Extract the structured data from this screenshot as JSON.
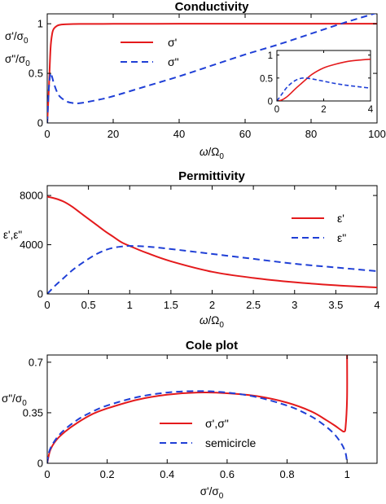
{
  "chart_data": [
    {
      "id": "conductivity",
      "type": "line",
      "title": "Conductivity",
      "xlabel": "ω/Ω0",
      "ylabel_lines": [
        "σ'/σ0",
        "σ\"/σ0"
      ],
      "xlim": [
        0,
        100
      ],
      "ylim": [
        0,
        1.1
      ],
      "xticks": [
        0,
        20,
        40,
        60,
        80,
        100
      ],
      "yticks": [
        0,
        0.5,
        1
      ],
      "legend": "top-center",
      "series": [
        {
          "name": "σ'",
          "color": "#e41a1c",
          "style": "solid",
          "x": [
            0,
            0.5,
            1,
            1.5,
            2,
            3,
            4,
            6,
            10,
            20,
            40,
            60,
            80,
            100
          ],
          "y": [
            0,
            0.35,
            0.75,
            0.9,
            0.95,
            0.98,
            0.99,
            0.995,
            0.998,
            0.999,
            1.0,
            1.0,
            1.0,
            1.0
          ]
        },
        {
          "name": "σ\"",
          "color": "#1f3fd6",
          "style": "dashed",
          "x": [
            0,
            0.5,
            1,
            1.5,
            2,
            3,
            4,
            6,
            8,
            10,
            15,
            20,
            30,
            40,
            50,
            60,
            70,
            80,
            90,
            100
          ],
          "y": [
            0,
            0.35,
            0.5,
            0.46,
            0.4,
            0.31,
            0.26,
            0.215,
            0.2,
            0.2,
            0.23,
            0.27,
            0.37,
            0.47,
            0.58,
            0.69,
            0.79,
            0.9,
            1.01,
            1.11
          ]
        }
      ]
    },
    {
      "id": "conductivity-inset",
      "type": "line",
      "title": "",
      "xlim": [
        0,
        4
      ],
      "ylim": [
        0,
        1.1
      ],
      "xticks": [
        0,
        2,
        4
      ],
      "yticks": [
        0,
        0.5,
        1
      ],
      "series": [
        {
          "name": "σ'",
          "color": "#e41a1c",
          "style": "solid",
          "x": [
            0,
            0.2,
            0.4,
            0.6,
            0.8,
            1,
            1.2,
            1.5,
            2,
            2.5,
            3,
            3.5,
            4
          ],
          "y": [
            0,
            0.02,
            0.08,
            0.17,
            0.27,
            0.36,
            0.45,
            0.58,
            0.72,
            0.8,
            0.86,
            0.89,
            0.91
          ]
        },
        {
          "name": "σ\"",
          "color": "#1f3fd6",
          "style": "dashed",
          "x": [
            0,
            0.2,
            0.4,
            0.6,
            0.8,
            1,
            1.2,
            1.5,
            2,
            2.5,
            3,
            3.5,
            4
          ],
          "y": [
            0,
            0.14,
            0.28,
            0.38,
            0.45,
            0.49,
            0.5,
            0.48,
            0.43,
            0.38,
            0.34,
            0.31,
            0.28
          ]
        }
      ]
    },
    {
      "id": "permittivity",
      "type": "line",
      "title": "Permittivity",
      "xlabel": "ω/Ω0",
      "ylabel": "ε',ε\"",
      "xlim": [
        0,
        4
      ],
      "ylim": [
        0,
        8800
      ],
      "xticks": [
        0,
        0.5,
        1,
        1.5,
        2,
        2.5,
        3,
        3.5,
        4
      ],
      "yticks": [
        0,
        4000,
        8000
      ],
      "legend": "top-right",
      "series": [
        {
          "name": "ε'",
          "color": "#e41a1c",
          "style": "solid",
          "x": [
            0,
            0.1,
            0.2,
            0.3,
            0.4,
            0.5,
            0.6,
            0.7,
            0.8,
            0.9,
            1.0,
            1.2,
            1.5,
            2.0,
            2.5,
            3.0,
            3.5,
            4.0
          ],
          "y": [
            7900,
            7750,
            7500,
            7100,
            6600,
            6100,
            5600,
            5100,
            4650,
            4200,
            3900,
            3350,
            2650,
            1800,
            1300,
            950,
            700,
            520
          ]
        },
        {
          "name": "ε\"",
          "color": "#1f3fd6",
          "style": "dashed",
          "x": [
            0,
            0.1,
            0.2,
            0.3,
            0.4,
            0.5,
            0.6,
            0.7,
            0.8,
            0.9,
            1.0,
            1.2,
            1.5,
            2.0,
            2.5,
            3.0,
            3.5,
            4.0
          ],
          "y": [
            0,
            700,
            1300,
            1900,
            2400,
            2850,
            3250,
            3550,
            3750,
            3850,
            3900,
            3850,
            3650,
            3250,
            2850,
            2450,
            2150,
            1850
          ]
        }
      ]
    },
    {
      "id": "cole-plot",
      "type": "line",
      "title": "Cole plot",
      "xlabel": "σ'/σ0",
      "ylabel": "σ\"/σ0",
      "xlim": [
        0,
        1.1
      ],
      "ylim": [
        0,
        0.75
      ],
      "xticks": [
        0,
        0.2,
        0.4,
        0.6,
        0.8,
        1
      ],
      "yticks": [
        0,
        0.35,
        0.7
      ],
      "legend": "bottom-center",
      "series": [
        {
          "name": "σ',σ\"",
          "color": "#e41a1c",
          "style": "solid",
          "x": [
            0,
            0.01,
            0.03,
            0.06,
            0.1,
            0.15,
            0.2,
            0.3,
            0.4,
            0.5,
            0.6,
            0.7,
            0.8,
            0.88,
            0.93,
            0.96,
            0.98,
            0.99,
            0.995,
            1.0,
            1.0
          ],
          "y": [
            0,
            0.09,
            0.16,
            0.22,
            0.28,
            0.34,
            0.38,
            0.44,
            0.475,
            0.49,
            0.485,
            0.465,
            0.42,
            0.36,
            0.3,
            0.26,
            0.23,
            0.22,
            0.25,
            0.45,
            0.75
          ]
        },
        {
          "name": "semicircle",
          "color": "#1f3fd6",
          "style": "dashed",
          "x": [
            0,
            0.005,
            0.02,
            0.05,
            0.1,
            0.15,
            0.2,
            0.3,
            0.4,
            0.5,
            0.6,
            0.7,
            0.8,
            0.85,
            0.9,
            0.95,
            0.98,
            0.995,
            1.0
          ],
          "y": [
            0,
            0.071,
            0.14,
            0.218,
            0.3,
            0.357,
            0.4,
            0.458,
            0.49,
            0.5,
            0.49,
            0.458,
            0.4,
            0.357,
            0.3,
            0.218,
            0.14,
            0.071,
            0
          ]
        }
      ]
    }
  ]
}
